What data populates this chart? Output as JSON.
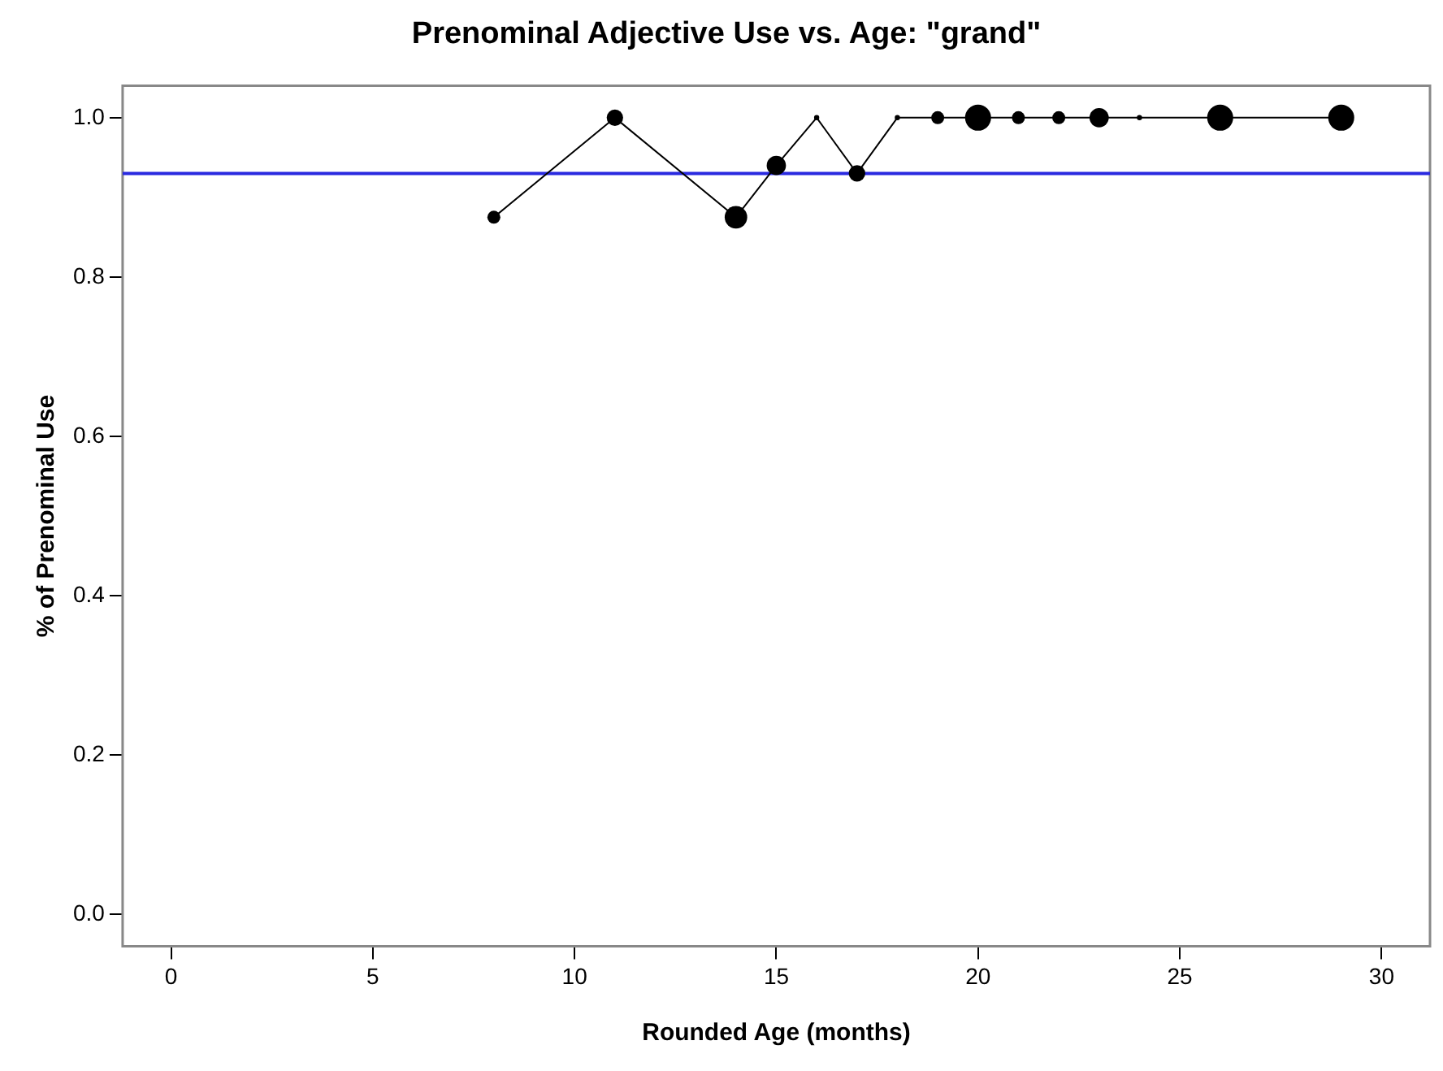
{
  "chart_data": {
    "type": "bubble",
    "title": "Prenominal Adjective Use vs. Age: \"grand\"",
    "xlabel": "Rounded Age (months)",
    "ylabel": "% of Prenominal Use",
    "x": [
      8,
      11,
      14,
      15,
      16,
      17,
      18,
      19,
      20,
      21,
      22,
      23,
      24,
      26,
      29
    ],
    "series": [
      {
        "type": "line",
        "color": "#000000",
        "line_style": "solid",
        "values": [
          0.875,
          1,
          0.875,
          0.94,
          1,
          0.93,
          1,
          1,
          1,
          1,
          1,
          1,
          1,
          1,
          1
        ]
      },
      {
        "type": "bubble",
        "color": "#000000",
        "marker": "circle",
        "values": [
          0.875,
          1,
          0.875,
          0.94,
          1,
          0.93,
          1,
          1,
          1,
          1,
          1,
          1,
          1,
          1,
          1
        ],
        "sizes": [
          0.25,
          0.4,
          0.75,
          0.55,
          0.04,
          0.4,
          0.04,
          0.25,
          1,
          0.25,
          0.25,
          0.55,
          0.04,
          1,
          1
        ]
      }
    ],
    "xlim": [
      -1.2,
      31.2
    ],
    "xticks": [
      0,
      5,
      10,
      15,
      20,
      25,
      30
    ],
    "ylim": [
      -0.04,
      1.04
    ],
    "yticks": [
      {
        "value": 0,
        "label": "0.0"
      },
      0.2,
      0.4,
      0.6,
      0.8,
      {
        "value": 1,
        "label": "1.0"
      }
    ],
    "ref_lines": [
      {
        "axis": "y",
        "value": 0.93,
        "color": "#2a2ae0"
      }
    ],
    "grid": false,
    "legend": false
  }
}
